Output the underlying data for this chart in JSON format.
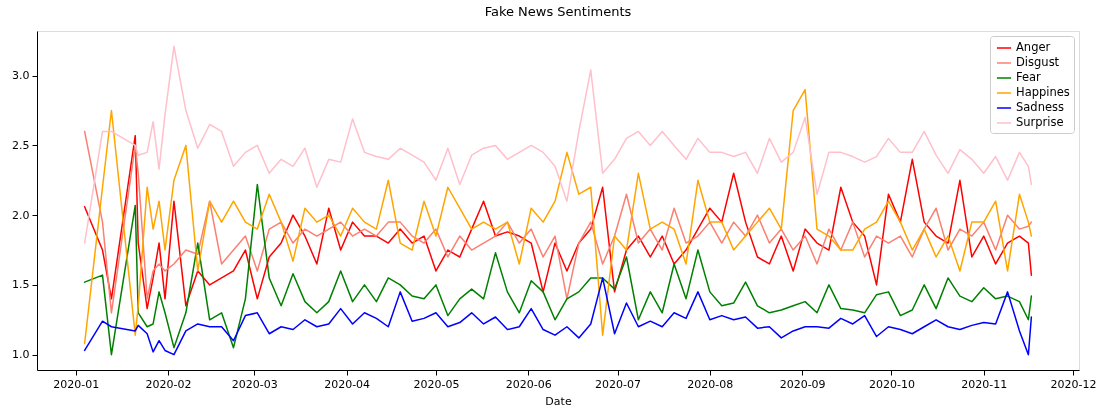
{
  "chart_data": {
    "type": "line",
    "title": "Fake News Sentiments",
    "xlabel": "Date",
    "x": [
      "2020-01-04",
      "2020-01-10",
      "2020-01-13",
      "2020-01-21",
      "2020-01-22",
      "2020-01-25",
      "2020-01-27",
      "2020-01-29",
      "2020-01-31",
      "2020-02-03",
      "2020-02-07",
      "2020-02-11",
      "2020-02-15",
      "2020-02-19",
      "2020-02-23",
      "2020-02-27",
      "2020-03-02",
      "2020-03-06",
      "2020-03-10",
      "2020-03-14",
      "2020-03-18",
      "2020-03-22",
      "2020-03-26",
      "2020-03-30",
      "2020-04-03",
      "2020-04-07",
      "2020-04-11",
      "2020-04-15",
      "2020-04-19",
      "2020-04-23",
      "2020-04-27",
      "2020-05-01",
      "2020-05-05",
      "2020-05-09",
      "2020-05-13",
      "2020-05-17",
      "2020-05-21",
      "2020-05-25",
      "2020-05-29",
      "2020-06-02",
      "2020-06-06",
      "2020-06-10",
      "2020-06-14",
      "2020-06-18",
      "2020-06-22",
      "2020-06-26",
      "2020-06-30",
      "2020-07-04",
      "2020-07-08",
      "2020-07-12",
      "2020-07-16",
      "2020-07-20",
      "2020-07-24",
      "2020-07-28",
      "2020-08-01",
      "2020-08-05",
      "2020-08-09",
      "2020-08-13",
      "2020-08-17",
      "2020-08-21",
      "2020-08-25",
      "2020-08-29",
      "2020-09-02",
      "2020-09-06",
      "2020-09-10",
      "2020-09-14",
      "2020-09-18",
      "2020-09-22",
      "2020-09-26",
      "2020-09-30",
      "2020-10-04",
      "2020-10-08",
      "2020-10-12",
      "2020-10-16",
      "2020-10-20",
      "2020-10-24",
      "2020-10-28",
      "2020-11-01",
      "2020-11-05",
      "2020-11-09",
      "2020-11-13",
      "2020-11-16",
      "2020-11-17"
    ],
    "series": [
      {
        "name": "Anger",
        "color": "#ff0000",
        "values": [
          2.06,
          1.75,
          1.4,
          2.57,
          1.8,
          1.33,
          1.55,
          1.8,
          1.4,
          2.1,
          1.35,
          1.6,
          1.5,
          1.55,
          1.6,
          1.75,
          1.4,
          1.7,
          1.8,
          2.0,
          1.85,
          1.65,
          2.05,
          1.75,
          1.95,
          1.85,
          1.85,
          1.8,
          1.9,
          1.8,
          1.85,
          1.6,
          1.75,
          1.7,
          1.9,
          2.1,
          1.85,
          1.88,
          1.85,
          1.8,
          1.45,
          1.8,
          1.6,
          1.8,
          1.9,
          2.2,
          1.45,
          1.75,
          1.85,
          1.7,
          1.85,
          1.65,
          1.75,
          1.9,
          2.05,
          1.95,
          2.3,
          1.95,
          1.7,
          1.65,
          1.85,
          1.6,
          1.9,
          1.8,
          1.75,
          2.2,
          1.95,
          1.85,
          1.5,
          2.15,
          1.95,
          2.4,
          1.95,
          1.85,
          1.8,
          2.25,
          1.7,
          1.85,
          1.65,
          1.8,
          1.85,
          1.8,
          1.57
        ]
      },
      {
        "name": "Disgust",
        "color": "#fa8072",
        "values": [
          2.6,
          1.95,
          1.3,
          2.5,
          2.3,
          1.4,
          1.6,
          1.65,
          1.6,
          1.65,
          1.75,
          1.72,
          2.1,
          1.65,
          1.75,
          1.85,
          1.6,
          1.9,
          1.95,
          1.8,
          1.9,
          1.85,
          1.9,
          1.95,
          1.85,
          1.9,
          1.85,
          1.95,
          1.95,
          1.85,
          1.8,
          1.9,
          1.7,
          1.85,
          1.75,
          1.8,
          1.85,
          1.95,
          1.8,
          1.9,
          1.7,
          1.85,
          1.4,
          1.8,
          1.95,
          1.65,
          1.85,
          2.15,
          1.8,
          1.9,
          1.75,
          2.05,
          1.8,
          1.85,
          1.95,
          1.8,
          1.95,
          1.85,
          2.0,
          1.8,
          1.9,
          1.75,
          1.85,
          1.65,
          1.9,
          1.75,
          1.95,
          1.7,
          1.85,
          1.8,
          1.85,
          1.7,
          1.9,
          2.05,
          1.75,
          1.9,
          1.85,
          1.95,
          1.75,
          2.0,
          1.9,
          1.92,
          1.95
        ]
      },
      {
        "name": "Fear",
        "color": "#008000",
        "values": [
          1.52,
          1.57,
          1.0,
          2.07,
          1.3,
          1.2,
          1.22,
          1.45,
          1.3,
          1.05,
          1.3,
          1.8,
          1.25,
          1.3,
          1.05,
          1.4,
          2.22,
          1.55,
          1.35,
          1.58,
          1.38,
          1.3,
          1.38,
          1.6,
          1.38,
          1.5,
          1.38,
          1.55,
          1.5,
          1.42,
          1.4,
          1.5,
          1.28,
          1.4,
          1.47,
          1.4,
          1.73,
          1.45,
          1.3,
          1.53,
          1.45,
          1.25,
          1.4,
          1.45,
          1.55,
          1.55,
          1.47,
          1.7,
          1.25,
          1.45,
          1.3,
          1.65,
          1.4,
          1.75,
          1.45,
          1.35,
          1.37,
          1.52,
          1.35,
          1.3,
          1.32,
          1.35,
          1.38,
          1.3,
          1.5,
          1.33,
          1.32,
          1.3,
          1.43,
          1.45,
          1.28,
          1.32,
          1.5,
          1.33,
          1.55,
          1.42,
          1.38,
          1.48,
          1.4,
          1.42,
          1.38,
          1.25,
          1.42
        ]
      },
      {
        "name": "Happines",
        "color": "#ffa500",
        "values": [
          1.08,
          2.2,
          2.75,
          1.14,
          1.35,
          2.2,
          1.9,
          2.1,
          1.75,
          2.25,
          2.5,
          1.6,
          2.1,
          1.95,
          2.1,
          1.95,
          1.9,
          2.15,
          1.95,
          1.67,
          2.05,
          1.95,
          2.0,
          1.85,
          2.05,
          1.95,
          1.9,
          2.25,
          1.8,
          1.75,
          2.1,
          1.85,
          2.2,
          2.05,
          1.9,
          1.95,
          1.9,
          1.95,
          1.65,
          2.05,
          1.95,
          2.1,
          2.45,
          2.15,
          2.2,
          1.14,
          1.85,
          1.75,
          2.3,
          1.9,
          1.95,
          1.9,
          1.65,
          2.25,
          1.95,
          1.95,
          1.75,
          1.85,
          1.95,
          2.05,
          1.9,
          2.75,
          2.9,
          1.9,
          1.85,
          1.75,
          1.75,
          1.9,
          1.95,
          2.1,
          1.95,
          1.75,
          1.9,
          1.7,
          1.85,
          1.6,
          1.95,
          1.95,
          2.1,
          1.6,
          2.15,
          1.95,
          1.85
        ]
      },
      {
        "name": "Sadness",
        "color": "#0000ff",
        "values": [
          1.03,
          1.24,
          1.2,
          1.17,
          1.21,
          1.15,
          1.02,
          1.1,
          1.03,
          1.0,
          1.17,
          1.22,
          1.2,
          1.2,
          1.1,
          1.28,
          1.3,
          1.15,
          1.2,
          1.18,
          1.25,
          1.2,
          1.22,
          1.33,
          1.22,
          1.3,
          1.26,
          1.2,
          1.45,
          1.24,
          1.26,
          1.3,
          1.2,
          1.23,
          1.3,
          1.22,
          1.27,
          1.18,
          1.2,
          1.33,
          1.18,
          1.14,
          1.2,
          1.12,
          1.22,
          1.55,
          1.15,
          1.37,
          1.2,
          1.24,
          1.2,
          1.3,
          1.26,
          1.45,
          1.25,
          1.28,
          1.25,
          1.27,
          1.19,
          1.2,
          1.12,
          1.17,
          1.2,
          1.2,
          1.19,
          1.26,
          1.22,
          1.28,
          1.13,
          1.2,
          1.18,
          1.15,
          1.2,
          1.25,
          1.2,
          1.18,
          1.21,
          1.23,
          1.22,
          1.45,
          1.17,
          1.0,
          1.27
        ]
      },
      {
        "name": "Surprise",
        "color": "#ffc0cb",
        "values": [
          1.8,
          2.6,
          2.6,
          2.5,
          2.43,
          2.45,
          2.67,
          2.33,
          2.72,
          3.21,
          2.75,
          2.48,
          2.65,
          2.6,
          2.35,
          2.45,
          2.5,
          2.3,
          2.4,
          2.35,
          2.48,
          2.2,
          2.4,
          2.38,
          2.69,
          2.45,
          2.42,
          2.4,
          2.48,
          2.43,
          2.38,
          2.25,
          2.48,
          2.22,
          2.43,
          2.48,
          2.5,
          2.4,
          2.45,
          2.5,
          2.45,
          2.35,
          2.1,
          2.6,
          3.04,
          2.3,
          2.4,
          2.55,
          2.6,
          2.5,
          2.6,
          2.5,
          2.4,
          2.55,
          2.45,
          2.45,
          2.42,
          2.45,
          2.3,
          2.55,
          2.38,
          2.45,
          2.7,
          2.15,
          2.45,
          2.45,
          2.42,
          2.38,
          2.42,
          2.55,
          2.45,
          2.45,
          2.6,
          2.43,
          2.3,
          2.47,
          2.4,
          2.3,
          2.42,
          2.25,
          2.45,
          2.35,
          2.22
        ]
      }
    ],
    "xlim": [
      "2019-12-19",
      "2020-12-03"
    ],
    "xticks": [
      "2020-01",
      "2020-02",
      "2020-03",
      "2020-04",
      "2020-05",
      "2020-06",
      "2020-07",
      "2020-08",
      "2020-09",
      "2020-10",
      "2020-11",
      "2020-12"
    ],
    "ylim": [
      0.89,
      3.32
    ],
    "yticks": [
      {
        "value": 1,
        "label": "1.0"
      },
      {
        "value": 1.5,
        "label": "1.5"
      },
      {
        "value": 2,
        "label": "2.0"
      },
      {
        "value": 2.5,
        "label": "2.5"
      },
      {
        "value": 3,
        "label": "3.0"
      }
    ],
    "legend": "top right"
  }
}
